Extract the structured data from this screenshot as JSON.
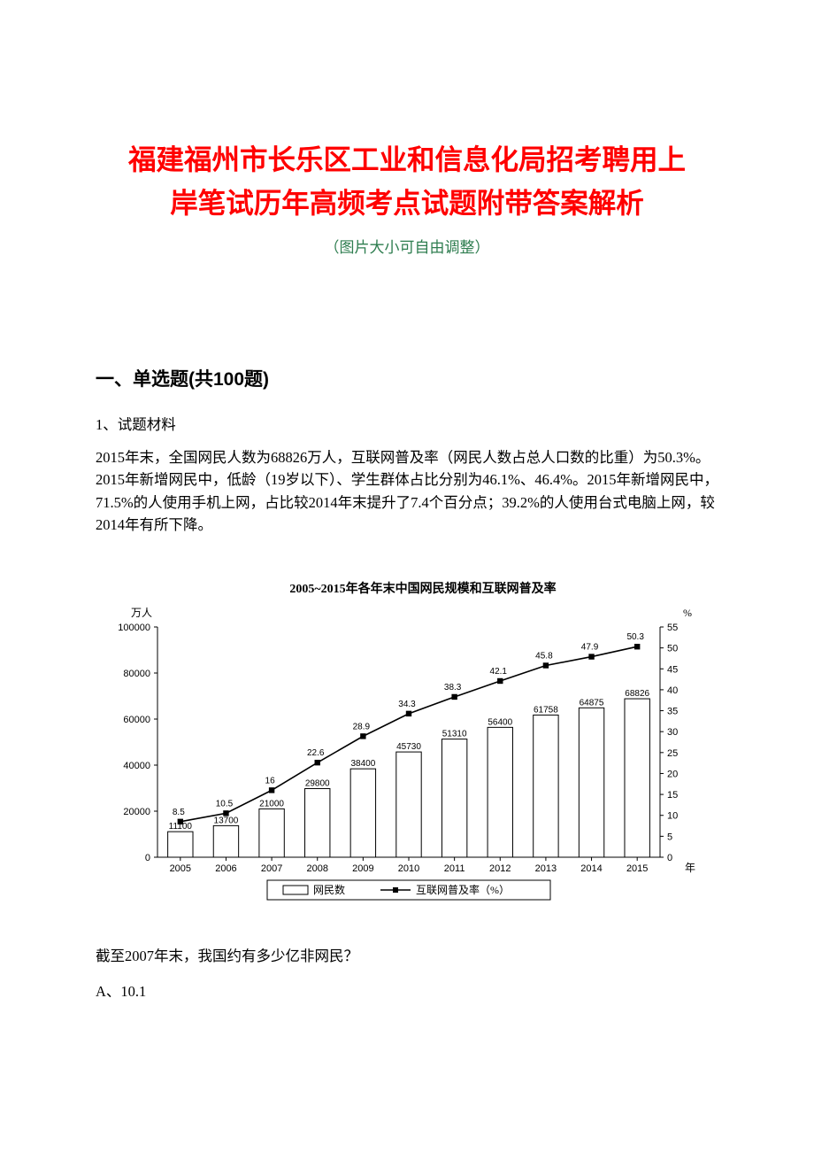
{
  "title_line1": "福建福州市长乐区工业和信息化局招考聘用上",
  "title_line2": "岸笔试历年高频考点试题附带答案解析",
  "subtitle": "（图片大小可自由调整）",
  "section_heading": "一、单选题(共100题)",
  "question_number_line": "1、试题材料",
  "question_body": "2015年末，全国网民人数为68826万人，互联网普及率（网民人数占总人口数的比重）为50.3%。2015年新增网民中，低龄（19岁以下）、学生群体占比分别为46.1%、46.4%。2015年新增网民中，71.5%的人使用手机上网，占比较2014年末提升了7.4个百分点；39.2%的人使用台式电脑上网，较2014年有所下降。",
  "chart": {
    "title": "2005~2015年各年末中国网民规模和互联网普及率",
    "type": "bar_and_line",
    "left_axis_label": "万人",
    "right_axis_label": "%",
    "x_axis_label": "年",
    "years": [
      "2005",
      "2006",
      "2007",
      "2008",
      "2009",
      "2010",
      "2011",
      "2012",
      "2013",
      "2014",
      "2015"
    ],
    "netizen_counts": [
      11100,
      13700,
      21000,
      29800,
      38400,
      45730,
      51310,
      56400,
      61758,
      64875,
      68826
    ],
    "penetration_rates": [
      8.5,
      10.5,
      16,
      22.6,
      28.9,
      34.3,
      38.3,
      42.1,
      45.8,
      47.9,
      50.3
    ],
    "left_ylim": [
      0,
      100000
    ],
    "left_ytick_step": 20000,
    "right_ylim": [
      0,
      55
    ],
    "right_ytick_step": 5,
    "bar_fill": "#ffffff",
    "bar_stroke": "#000000",
    "line_color": "#000000",
    "marker_shape": "square",
    "marker_fill": "#000000",
    "background_color": "#ffffff",
    "axis_color": "#000000",
    "tick_font_size": 11,
    "label_font_size": 12,
    "legend_items": [
      "网民数",
      "互联网普及率（%）"
    ],
    "bar_width_rel": 0.55,
    "data_label_font_size": 10
  },
  "question_after": "截至2007年末，我国约有多少亿非网民？",
  "option_a": "A、10.1"
}
